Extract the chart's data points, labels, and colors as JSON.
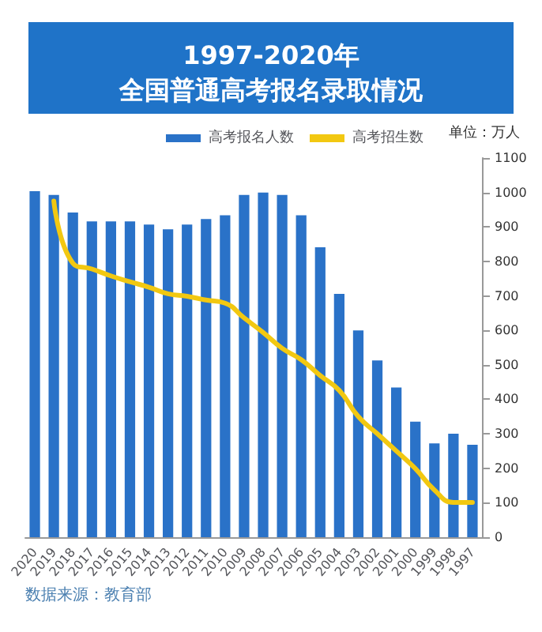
{
  "chart_data": {
    "type": "bar",
    "title": "1997-2020年",
    "subtitle": "全国普通高考报名录取情况",
    "ylabel": "单位：万人",
    "annotations": [
      "数据来源：教育部"
    ],
    "categories": [
      "2020",
      "2019",
      "2018",
      "2017",
      "2016",
      "2015",
      "2014",
      "2013",
      "2012",
      "2011",
      "2010",
      "2009",
      "2008",
      "2007",
      "2006",
      "2005",
      "2004",
      "2003",
      "2002",
      "2001",
      "2000",
      "1999",
      "1998",
      "1997"
    ],
    "series": [
      {
        "name": "高考报名人数",
        "color": "#2a72c8",
        "values": [
          1004,
          993,
          942,
          916,
          916,
          916,
          907,
          893,
          907,
          923,
          934,
          993,
          1000,
          993,
          934,
          841,
          706,
          600,
          513,
          434,
          335,
          272,
          300,
          268
        ]
      },
      {
        "name": "高考招生数",
        "type": "line",
        "color": "#f2c811",
        "values": [
          null,
          975,
          795,
          778,
          758,
          741,
          725,
          706,
          699,
          688,
          679,
          636,
          594,
          548,
          515,
          469,
          426,
          350,
          300,
          250,
          199,
          137,
          101,
          101
        ]
      }
    ],
    "ylim": [
      0,
      1100
    ],
    "yticks": [
      0,
      100,
      200,
      300,
      400,
      500,
      600,
      700,
      800,
      900,
      1000,
      1100
    ],
    "grid": false,
    "legend": "top",
    "marker": "none",
    "line_style": "solid"
  }
}
